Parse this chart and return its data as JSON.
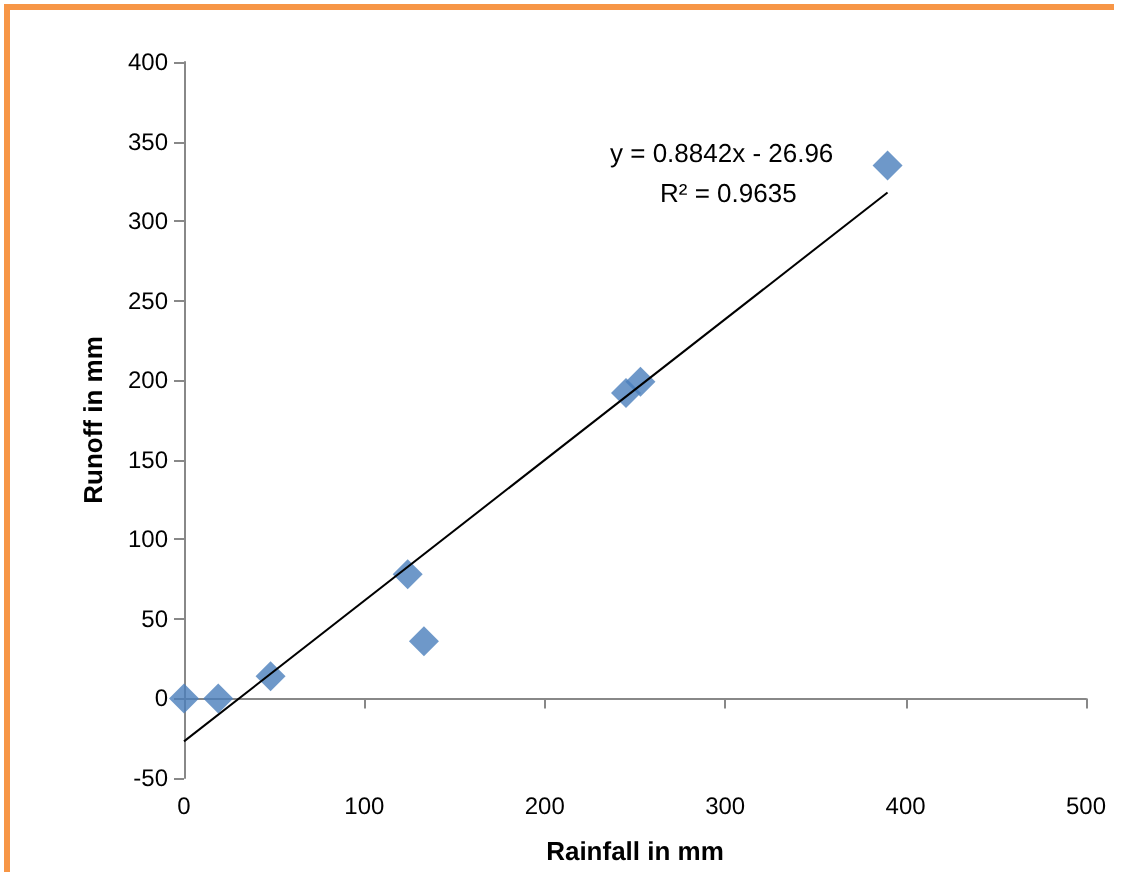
{
  "chart_data": {
    "type": "scatter",
    "xlabel": "Rainfall in mm",
    "ylabel": "Runoff in mm",
    "xlim": [
      0,
      500
    ],
    "xticks": [
      0,
      100,
      200,
      300,
      400,
      500
    ],
    "ylim": [
      -50,
      400
    ],
    "yticks": [
      -50,
      0,
      50,
      100,
      150,
      200,
      250,
      300,
      350,
      400
    ],
    "marker": "diamond",
    "annotations": [
      "y = 0.8842x - 26.96",
      "R² = 0.9635"
    ],
    "series": [
      {
        "color": "#4a7ebb",
        "x": [
          0,
          19,
          48,
          124,
          133,
          245,
          253,
          390
        ],
        "values": [
          0,
          0,
          14,
          78,
          36,
          192,
          199,
          335
        ]
      },
      {
        "type": "line",
        "marker": "none",
        "color": "#000000",
        "x": [
          0,
          390
        ],
        "values": [
          -27,
          318
        ]
      }
    ]
  }
}
